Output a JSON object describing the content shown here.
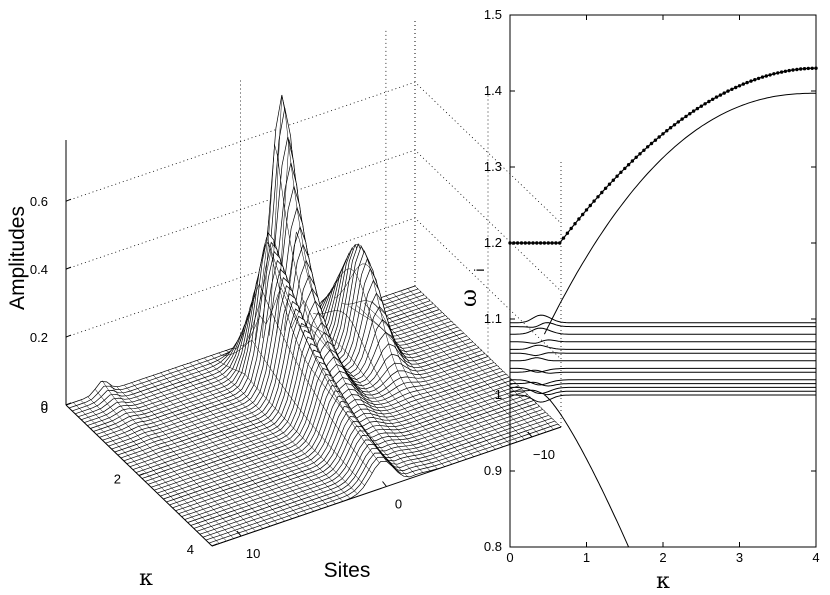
{
  "chart_data": [
    {
      "type": "surface",
      "zlabel": "Amplitudes",
      "xlabel": "Sites",
      "ylabel": "κ",
      "z_ticks": [
        "0",
        "0.2",
        "0.4",
        "0.6"
      ],
      "kappa_ticks": [
        "0",
        "2",
        "4"
      ],
      "site_ticks": [
        "10",
        "0",
        "−10"
      ],
      "zlim": [
        0,
        0.75
      ],
      "kappa_range": [
        0,
        4
      ],
      "site_range": [
        -12,
        12
      ],
      "grid": true,
      "ridges": [
        {
          "name_hidden": "",
          "site": -2,
          "peak": 0.78,
          "kappa_peak": 0.4
        },
        {
          "site": -2,
          "peak": 0.44,
          "kappa_peak": 0.9
        },
        {
          "site": -6,
          "peak": 0.3,
          "kappa_peak": 0.5
        }
      ]
    },
    {
      "type": "line",
      "xlabel": "κ",
      "ylabel": "ω",
      "ylabel_sub": "i",
      "xlim": [
        0,
        4
      ],
      "ylim": [
        0.8,
        1.5
      ],
      "x_ticks": [
        "0",
        "1",
        "2",
        "3",
        "4"
      ],
      "y_ticks": [
        "0.8",
        "0.9",
        "1",
        "1.1",
        "1.2",
        "1.3",
        "1.4",
        "1.5"
      ],
      "marked_branch": {
        "start": 1.2,
        "end": 1.43,
        "kappa_onset": 0.65
      },
      "upper_branch": {
        "end": 1.397
      },
      "lower_branch": {
        "end": 0.8
      },
      "band_levels": [
        1.0,
        1.005,
        1.01,
        1.015,
        1.02,
        1.03,
        1.035,
        1.045,
        1.055,
        1.06,
        1.07,
        1.08,
        1.09,
        1.095
      ]
    }
  ]
}
